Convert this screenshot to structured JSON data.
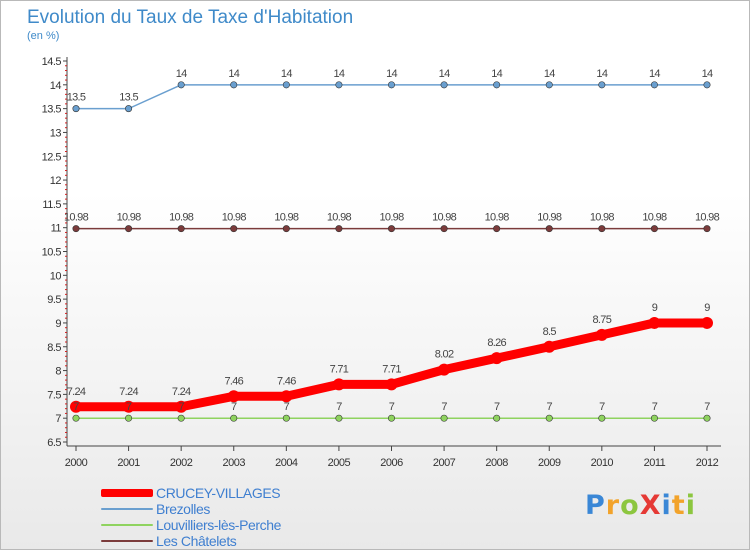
{
  "title": "Evolution du Taux de Taxe d'Habitation",
  "subtitle": "(en %)",
  "chart_data": {
    "type": "line",
    "x": [
      "2000",
      "2001",
      "2002",
      "2003",
      "2004",
      "2005",
      "2006",
      "2007",
      "2008",
      "2009",
      "2010",
      "2011",
      "2012"
    ],
    "y_ticks": [
      "6.5",
      "7",
      "7.5",
      "8",
      "8.5",
      "9",
      "9.5",
      "10",
      "10.5",
      "11",
      "11.5",
      "12",
      "12.5",
      "13",
      "13.5",
      "14",
      "14.5"
    ],
    "ylim": [
      6.5,
      14.5
    ],
    "grid": false,
    "legend_position": "bottom-left",
    "series": [
      {
        "name": "CRUCEY-VILLAGES",
        "color": "#ff0000",
        "values": [
          7.24,
          7.24,
          7.24,
          7.46,
          7.46,
          7.71,
          7.71,
          8.02,
          8.26,
          8.5,
          8.75,
          9,
          9
        ],
        "labels": [
          "7.24",
          "7.24",
          "7.24",
          "7.46",
          "7.46",
          "7.71",
          "7.71",
          "8.02",
          "8.26",
          "8.5",
          "8.75",
          "9",
          "9"
        ]
      },
      {
        "name": "Brezolles",
        "color": "#6a9fcf",
        "values": [
          13.5,
          13.5,
          14,
          14,
          14,
          14,
          14,
          14,
          14,
          14,
          14,
          14,
          14
        ],
        "labels": [
          "13.5",
          "13.5",
          "14",
          "14",
          "14",
          "14",
          "14",
          "14",
          "14",
          "14",
          "14",
          "14",
          "14"
        ]
      },
      {
        "name": "Louvilliers-lès-Perche",
        "color": "#8fd35f",
        "values": [
          7,
          7,
          7,
          7,
          7,
          7,
          7,
          7,
          7,
          7,
          7,
          7,
          7
        ],
        "labels": [
          "7",
          "7",
          "7",
          "7",
          "7",
          "7",
          "7",
          "7",
          "7",
          "7",
          "7",
          "7",
          "7"
        ]
      },
      {
        "name": "Les Châtelets",
        "color": "#7b3b3b",
        "values": [
          10.98,
          10.98,
          10.98,
          10.98,
          10.98,
          10.98,
          10.98,
          10.98,
          10.98,
          10.98,
          10.98,
          10.98,
          10.98
        ],
        "labels": [
          "10.98",
          "10.98",
          "10.98",
          "10.98",
          "10.98",
          "10.98",
          "10.98",
          "10.98",
          "10.98",
          "10.98",
          "10.98",
          "10.98",
          "10.98"
        ]
      }
    ]
  },
  "legend": [
    {
      "label": "CRUCEY-VILLAGES",
      "color": "#ff0000",
      "text_color": "#3f7fd0"
    },
    {
      "label": "Brezolles",
      "color": "#6a9fcf",
      "text_color": "#3f7fd0"
    },
    {
      "label": "Louvilliers-lès-Perche",
      "color": "#8fd35f",
      "text_color": "#3f7fd0"
    },
    {
      "label": "Les Châtelets",
      "color": "#7b3b3b",
      "text_color": "#3f7fd0"
    }
  ],
  "logo": {
    "text": "ProXiti",
    "colors": [
      "#3a87d6",
      "#f2a32b",
      "#8cc63f",
      "#e53935",
      "#3a87d6",
      "#f2a32b",
      "#8cc63f"
    ]
  }
}
